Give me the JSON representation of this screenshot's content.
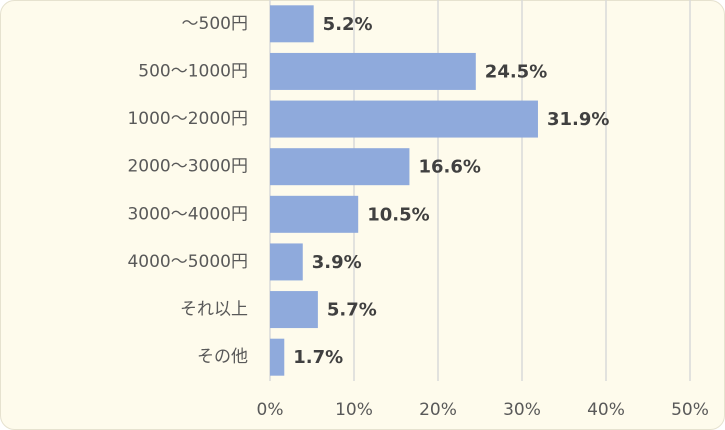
{
  "chart_data": {
    "type": "bar",
    "orientation": "horizontal",
    "categories": [
      "～500円",
      "500～1000円",
      "1000～2000円",
      "2000～3000円",
      "3000～4000円",
      "4000～5000円",
      "それ以上",
      "その他"
    ],
    "values": [
      5.2,
      24.5,
      31.9,
      16.6,
      10.5,
      3.9,
      5.7,
      1.7
    ],
    "value_labels": [
      "5.2%",
      "24.5%",
      "31.9%",
      "16.6%",
      "10.5%",
      "3.9%",
      "5.7%",
      "1.7%"
    ],
    "color": "#8faadc",
    "xlim": [
      0,
      50
    ],
    "xticks": [
      {
        "value": 0,
        "label": "0%"
      },
      {
        "value": 10,
        "label": "10%"
      },
      {
        "value": 20,
        "label": "20%"
      },
      {
        "value": 30,
        "label": "30%"
      },
      {
        "value": 40,
        "label": "40%"
      },
      {
        "value": 50,
        "label": "50%"
      }
    ],
    "grid": true
  }
}
